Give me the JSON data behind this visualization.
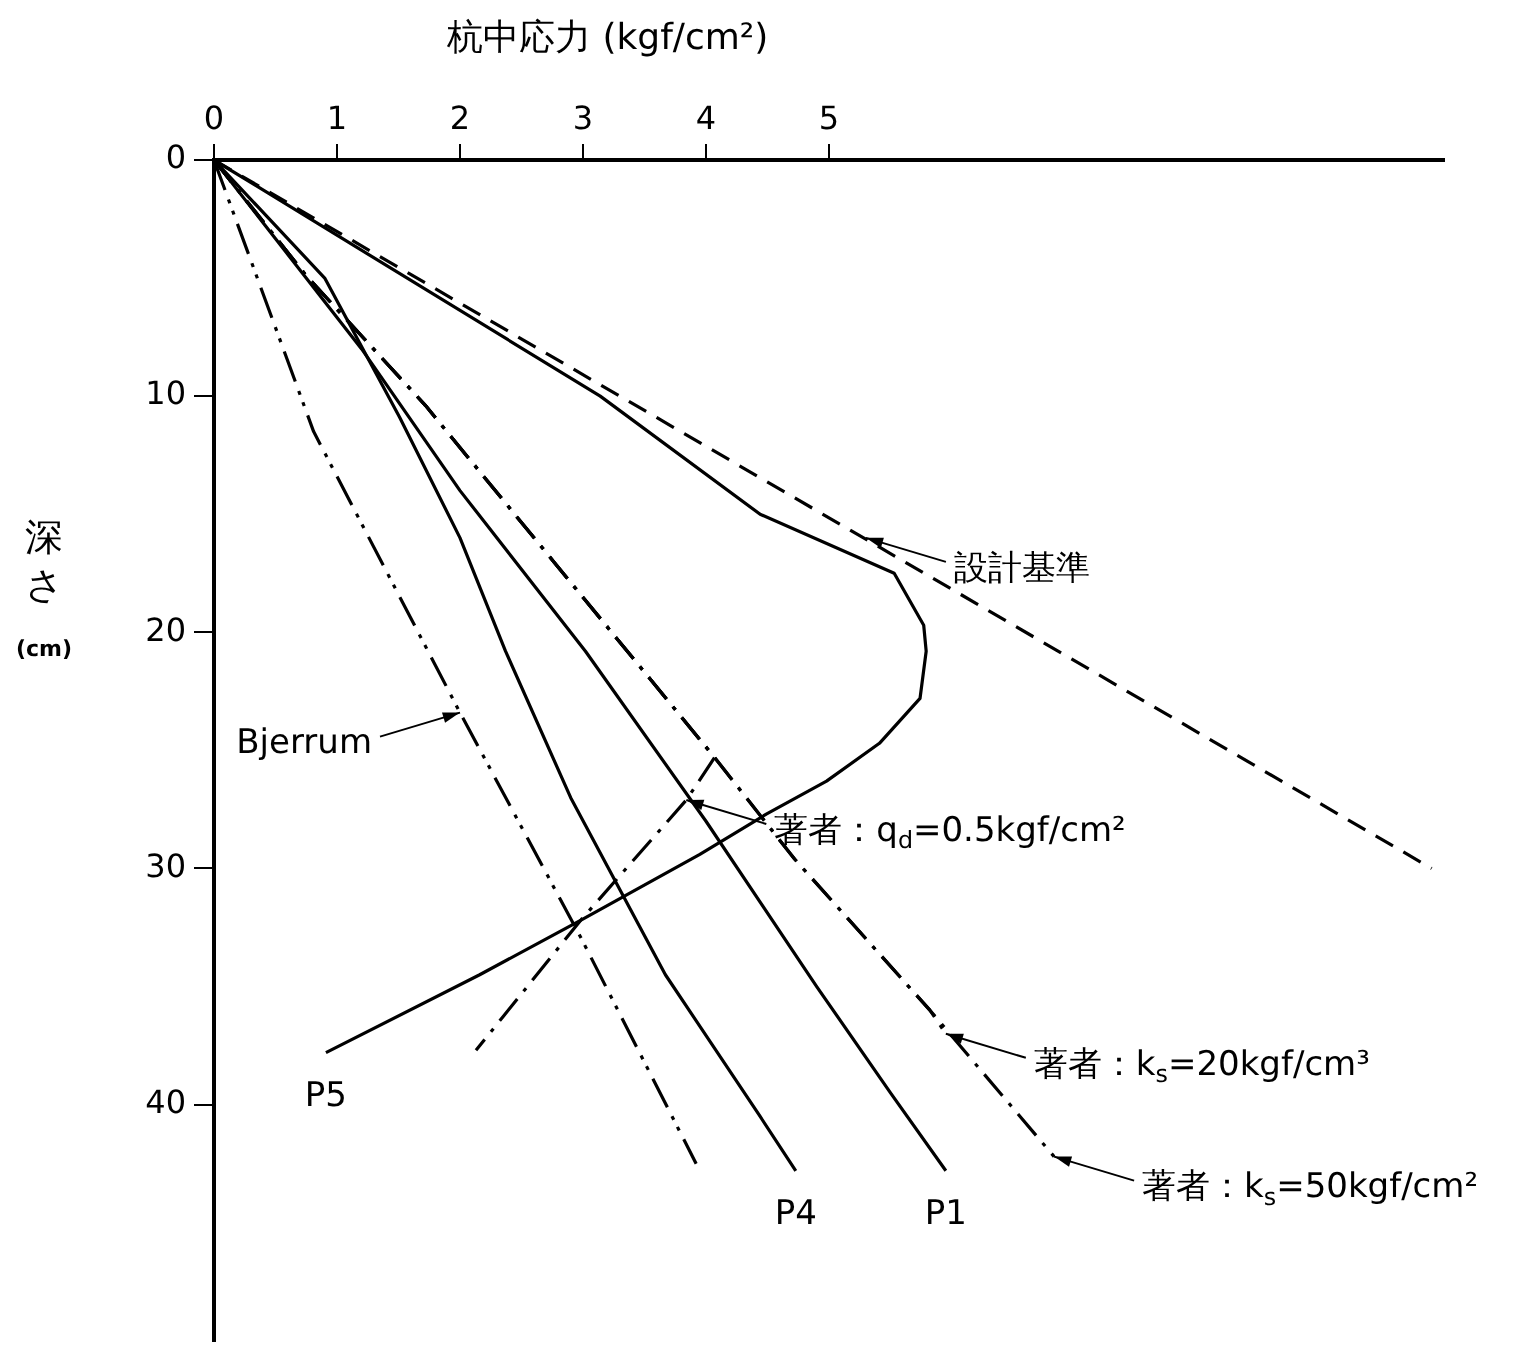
{
  "chart_data": {
    "type": "line",
    "xlabel": "杭中応力 (kgf/cm²)",
    "ylabel": "深さ (cm)",
    "xlim": [
      0,
      10
    ],
    "xticks": [
      0,
      1,
      2,
      3,
      4,
      5
    ],
    "ylim": [
      50,
      0
    ],
    "yticks": [
      0,
      10,
      20,
      30,
      40
    ],
    "legend": false,
    "marker": "none",
    "series": [
      {
        "color": "#000000",
        "line_style": "dashed",
        "x": [
          0,
          9.9
        ],
        "values": [
          0,
          30
        ]
      },
      {
        "name": "P5",
        "color": "#000000",
        "line_style": "solid",
        "x": [
          0,
          3.14,
          4.44,
          5.53,
          5.77,
          5.79,
          5.74,
          5.41,
          4.98,
          4.49,
          3.95,
          2.98,
          2.16,
          0.91
        ],
        "values": [
          0,
          10,
          15,
          17.5,
          19.7,
          20.8,
          22.8,
          24.7,
          26.3,
          27.7,
          29.4,
          32.2,
          34.5,
          37.8
        ]
      },
      {
        "color": "#000000",
        "line_style": "dashdot",
        "x": [
          0,
          0.75,
          1.72,
          2.76,
          4.07,
          3.84,
          2.98,
          2.13
        ],
        "values": [
          0,
          4.9,
          10.4,
          17,
          25.3,
          27.1,
          32.2,
          37.7
        ]
      },
      {
        "color": "#000000",
        "line_style": "dashdot",
        "x": [
          0,
          0.75,
          1.72,
          2.76,
          4.07,
          4.72,
          5.82,
          5.95
        ],
        "values": [
          0,
          4.9,
          10.4,
          17,
          25.3,
          29.6,
          36,
          37
        ]
      },
      {
        "color": "#000000",
        "line_style": "dashdot",
        "x": [
          0,
          0.75,
          1.72,
          2.76,
          4.07,
          4.72,
          5.82,
          6.83
        ],
        "values": [
          0,
          4.9,
          10.4,
          17,
          25.3,
          29.6,
          36,
          42.2
        ]
      },
      {
        "color": "#000000",
        "line_style": "dashdotdot",
        "x": [
          0,
          0.81,
          2.0,
          2.98,
          3.92
        ],
        "values": [
          0,
          11.5,
          23.4,
          32.9,
          42.5
        ]
      },
      {
        "name": "P4",
        "color": "#000000",
        "line_style": "solid",
        "x": [
          0,
          0.9,
          1.51,
          2.0,
          2.37,
          2.9,
          3.67,
          4.44,
          4.73
        ],
        "values": [
          0,
          5,
          10.9,
          16,
          20.8,
          27,
          34.5,
          40.5,
          42.8
        ]
      },
      {
        "name": "P1",
        "color": "#000000",
        "line_style": "solid",
        "x": [
          0,
          1.2,
          2.0,
          3.02,
          4.0,
          4.9,
          5.5,
          5.95
        ],
        "values": [
          0,
          8,
          14,
          20.8,
          28,
          35,
          39.5,
          42.8
        ]
      }
    ],
    "annotations": [
      {
        "text": "設計基準",
        "x": 5.3,
        "y": 16
      },
      {
        "text": "Bjerrum",
        "x": 2.0,
        "y": 23.4
      },
      {
        "text": "著者：q$_{d}$=0.5kgf/cm²",
        "x": 3.84,
        "y": 27.1
      },
      {
        "text": "著者：k$_{s}$=50kgf/cm²",
        "x": 6.83,
        "y": 42.2
      },
      {
        "text": "著者：k$_{s}$=20kgf/cm³",
        "x": 5.95,
        "y": 37
      }
    ]
  }
}
